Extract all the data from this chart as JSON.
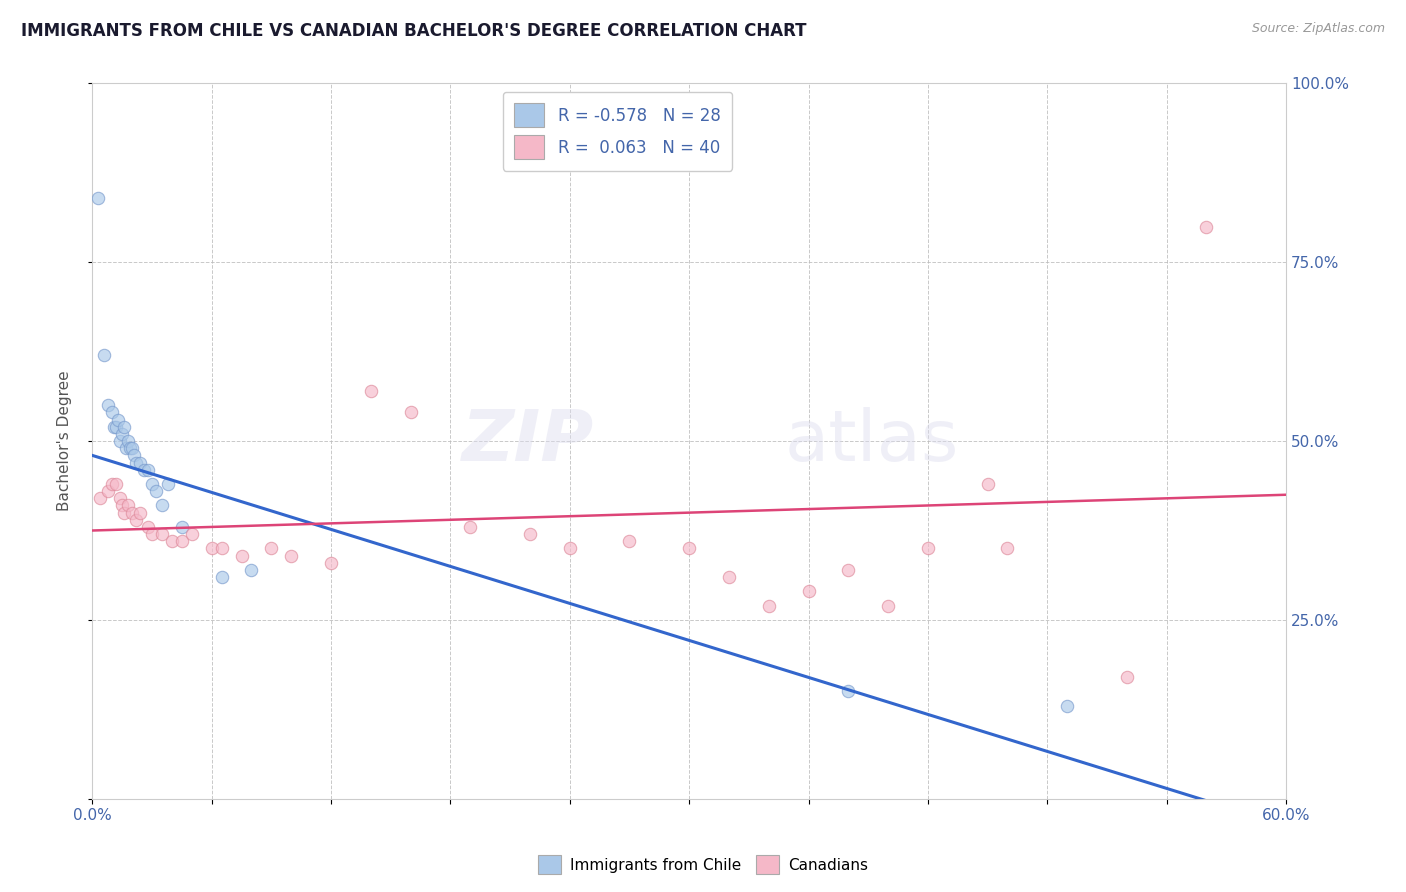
{
  "title": "IMMIGRANTS FROM CHILE VS CANADIAN BACHELOR'S DEGREE CORRELATION CHART",
  "source_text": "Source: ZipAtlas.com",
  "xlabel": "",
  "ylabel": "Bachelor's Degree",
  "xmin": 0.0,
  "xmax": 0.6,
  "ymin": 0.0,
  "ymax": 1.0,
  "yticks": [
    0.0,
    0.25,
    0.5,
    0.75,
    1.0
  ],
  "ytick_labels": [
    "",
    "25.0%",
    "50.0%",
    "75.0%",
    "100.0%"
  ],
  "xtick_labels": [
    "0.0%",
    "",
    "",
    "",
    "",
    "",
    "",
    "",
    "",
    "",
    "60.0%"
  ],
  "legend_footer": [
    "Immigrants from Chile",
    "Canadians"
  ],
  "legend_footer_colors": [
    "#a8c4e0",
    "#f4b8c8"
  ],
  "blue_scatter": [
    [
      0.003,
      0.84
    ],
    [
      0.006,
      0.62
    ],
    [
      0.008,
      0.55
    ],
    [
      0.01,
      0.54
    ],
    [
      0.011,
      0.52
    ],
    [
      0.012,
      0.52
    ],
    [
      0.013,
      0.53
    ],
    [
      0.014,
      0.5
    ],
    [
      0.015,
      0.51
    ],
    [
      0.016,
      0.52
    ],
    [
      0.017,
      0.49
    ],
    [
      0.018,
      0.5
    ],
    [
      0.019,
      0.49
    ],
    [
      0.02,
      0.49
    ],
    [
      0.021,
      0.48
    ],
    [
      0.022,
      0.47
    ],
    [
      0.024,
      0.47
    ],
    [
      0.026,
      0.46
    ],
    [
      0.028,
      0.46
    ],
    [
      0.03,
      0.44
    ],
    [
      0.032,
      0.43
    ],
    [
      0.035,
      0.41
    ],
    [
      0.038,
      0.44
    ],
    [
      0.045,
      0.38
    ],
    [
      0.065,
      0.31
    ],
    [
      0.08,
      0.32
    ],
    [
      0.38,
      0.15
    ],
    [
      0.49,
      0.13
    ]
  ],
  "pink_scatter": [
    [
      0.004,
      0.42
    ],
    [
      0.008,
      0.43
    ],
    [
      0.01,
      0.44
    ],
    [
      0.012,
      0.44
    ],
    [
      0.014,
      0.42
    ],
    [
      0.015,
      0.41
    ],
    [
      0.016,
      0.4
    ],
    [
      0.018,
      0.41
    ],
    [
      0.02,
      0.4
    ],
    [
      0.022,
      0.39
    ],
    [
      0.024,
      0.4
    ],
    [
      0.028,
      0.38
    ],
    [
      0.03,
      0.37
    ],
    [
      0.035,
      0.37
    ],
    [
      0.04,
      0.36
    ],
    [
      0.045,
      0.36
    ],
    [
      0.05,
      0.37
    ],
    [
      0.06,
      0.35
    ],
    [
      0.065,
      0.35
    ],
    [
      0.075,
      0.34
    ],
    [
      0.09,
      0.35
    ],
    [
      0.1,
      0.34
    ],
    [
      0.12,
      0.33
    ],
    [
      0.14,
      0.57
    ],
    [
      0.16,
      0.54
    ],
    [
      0.19,
      0.38
    ],
    [
      0.22,
      0.37
    ],
    [
      0.24,
      0.35
    ],
    [
      0.27,
      0.36
    ],
    [
      0.3,
      0.35
    ],
    [
      0.32,
      0.31
    ],
    [
      0.34,
      0.27
    ],
    [
      0.36,
      0.29
    ],
    [
      0.38,
      0.32
    ],
    [
      0.4,
      0.27
    ],
    [
      0.42,
      0.35
    ],
    [
      0.45,
      0.44
    ],
    [
      0.46,
      0.35
    ],
    [
      0.52,
      0.17
    ],
    [
      0.56,
      0.8
    ]
  ],
  "blue_line": [
    [
      0.0,
      0.48
    ],
    [
      0.58,
      -0.02
    ]
  ],
  "pink_line": [
    [
      0.0,
      0.375
    ],
    [
      0.6,
      0.425
    ]
  ],
  "title_color": "#1a1a2e",
  "title_fontsize": 12,
  "axis_color": "#4466aa",
  "dot_alpha": 0.65,
  "dot_size": 80,
  "grid_color": "#bbbbbb",
  "background_color": "#ffffff"
}
